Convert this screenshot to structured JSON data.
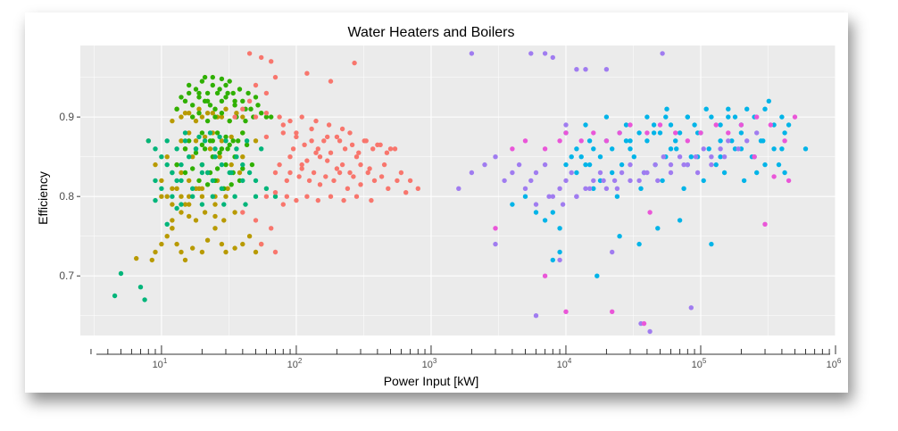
{
  "chart_data": {
    "type": "scatter",
    "title": "Water Heaters and Boilers",
    "xlabel": "Power Input [kW]",
    "ylabel": "Efficiency",
    "xscale": "log10",
    "xlim": [
      2.5,
      1000000
    ],
    "ylim": [
      0.625,
      0.99
    ],
    "grid": true,
    "legend": "none",
    "y_ticks": [
      {
        "value": 0.7,
        "label": "0.7"
      },
      {
        "value": 0.8,
        "label": "0.8"
      },
      {
        "value": 0.9,
        "label": "0.9"
      }
    ],
    "x_ticks": [
      {
        "value": 10,
        "base": "10",
        "exp": "1"
      },
      {
        "value": 100,
        "base": "10",
        "exp": "2"
      },
      {
        "value": 1000,
        "base": "10",
        "exp": "3"
      },
      {
        "value": 10000,
        "base": "10",
        "exp": "4"
      },
      {
        "value": 100000,
        "base": "10",
        "exp": "5"
      },
      {
        "value": 1000000,
        "base": "10",
        "exp": "6"
      }
    ],
    "colors": {
      "panel": "#ebebeb",
      "grid": "#ffffff",
      "series": [
        "#b89a00",
        "#2fb000",
        "#00b57a",
        "#f8766d",
        "#00b4e8",
        "#a07cf0",
        "#ea56d8"
      ]
    },
    "series": [
      {
        "color": "#b89a00",
        "x": [
          6.5,
          8.5,
          9,
          10,
          11,
          12,
          13,
          14,
          15,
          17,
          20,
          22,
          25,
          28,
          30,
          35,
          40,
          45,
          50,
          55,
          11,
          12,
          13,
          14,
          15,
          16,
          18,
          20,
          25,
          30,
          12,
          14,
          16,
          18,
          20,
          24,
          28,
          32,
          40,
          13,
          15,
          17,
          19,
          22,
          26,
          30,
          36,
          11,
          13,
          15,
          17,
          20,
          23,
          27,
          33,
          40,
          10,
          12,
          14,
          16,
          19,
          22,
          26,
          31,
          38,
          12,
          14,
          16,
          18,
          21,
          25,
          29,
          35,
          14,
          16,
          18,
          21,
          24,
          28,
          33,
          40,
          50,
          8,
          9,
          10,
          12,
          16,
          20,
          25
        ],
        "y": [
          0.722,
          0.72,
          0.73,
          0.74,
          0.75,
          0.76,
          0.74,
          0.73,
          0.72,
          0.735,
          0.73,
          0.745,
          0.76,
          0.74,
          0.73,
          0.735,
          0.74,
          0.75,
          0.73,
          0.74,
          0.8,
          0.79,
          0.81,
          0.8,
          0.79,
          0.8,
          0.81,
          0.8,
          0.79,
          0.8,
          0.895,
          0.9,
          0.905,
          0.895,
          0.9,
          0.905,
          0.9,
          0.895,
          0.9,
          0.91,
          0.905,
          0.9,
          0.91,
          0.905,
          0.9,
          0.91,
          0.905,
          0.85,
          0.84,
          0.86,
          0.85,
          0.84,
          0.86,
          0.85,
          0.84,
          0.85,
          0.82,
          0.81,
          0.83,
          0.82,
          0.81,
          0.83,
          0.82,
          0.81,
          0.83,
          0.77,
          0.78,
          0.775,
          0.77,
          0.78,
          0.775,
          0.77,
          0.78,
          0.87,
          0.88,
          0.87,
          0.875,
          0.88,
          0.87,
          0.875,
          0.88,
          0.87,
          0.87,
          0.84,
          0.8,
          0.76,
          0.79,
          0.81,
          0.8
        ]
      },
      {
        "color": "#2fb000",
        "x": [
          13,
          15,
          17,
          19,
          21,
          23,
          25,
          28,
          31,
          35,
          40,
          46,
          52,
          60,
          16,
          18,
          20,
          22,
          24,
          27,
          30,
          34,
          38,
          44,
          50,
          17,
          19,
          22,
          25,
          28,
          32,
          36,
          42,
          48,
          20,
          23,
          26,
          30,
          34,
          40,
          15,
          18,
          21,
          24,
          27,
          31,
          35,
          13,
          15,
          17,
          20,
          23,
          26,
          30,
          34,
          40,
          47,
          19,
          22,
          25,
          29,
          33,
          38,
          16,
          20,
          24,
          28,
          32,
          37,
          43,
          21,
          24,
          28,
          32,
          14,
          16,
          19,
          22,
          26,
          30,
          35,
          42,
          55,
          65
        ],
        "y": [
          0.91,
          0.92,
          0.915,
          0.93,
          0.92,
          0.915,
          0.91,
          0.92,
          0.93,
          0.915,
          0.92,
          0.91,
          0.915,
          0.9,
          0.94,
          0.935,
          0.945,
          0.93,
          0.94,
          0.935,
          0.94,
          0.93,
          0.935,
          0.93,
          0.925,
          0.9,
          0.905,
          0.895,
          0.9,
          0.905,
          0.895,
          0.9,
          0.895,
          0.9,
          0.88,
          0.87,
          0.88,
          0.875,
          0.87,
          0.88,
          0.86,
          0.855,
          0.86,
          0.85,
          0.855,
          0.86,
          0.85,
          0.84,
          0.83,
          0.835,
          0.84,
          0.83,
          0.835,
          0.84,
          0.83,
          0.835,
          0.84,
          0.82,
          0.815,
          0.82,
          0.81,
          0.815,
          0.82,
          0.87,
          0.865,
          0.87,
          0.86,
          0.865,
          0.87,
          0.865,
          0.95,
          0.95,
          0.948,
          0.945,
          0.925,
          0.93,
          0.925,
          0.92,
          0.93,
          0.925,
          0.92,
          0.91,
          0.905,
          0.9
        ]
      },
      {
        "color": "#00b57a",
        "x": [
          4.5,
          5,
          7,
          7.5,
          8,
          9,
          10,
          11,
          12,
          13,
          14,
          16,
          18,
          20,
          22,
          25,
          28,
          32,
          36,
          40,
          45,
          50,
          60,
          70,
          9,
          10,
          12,
          14,
          17,
          20,
          24,
          28,
          33,
          40,
          11,
          13,
          15,
          18,
          21,
          25,
          30,
          36,
          43,
          55,
          12,
          14,
          17,
          20,
          24,
          29,
          35,
          42,
          50,
          15,
          19,
          23,
          27,
          9,
          11,
          13
        ],
        "y": [
          0.675,
          0.703,
          0.686,
          0.67,
          0.87,
          0.86,
          0.85,
          0.84,
          0.83,
          0.82,
          0.84,
          0.85,
          0.86,
          0.84,
          0.83,
          0.85,
          0.84,
          0.83,
          0.85,
          0.84,
          0.83,
          0.82,
          0.81,
          0.8,
          0.82,
          0.81,
          0.83,
          0.82,
          0.81,
          0.83,
          0.82,
          0.81,
          0.83,
          0.82,
          0.87,
          0.86,
          0.87,
          0.86,
          0.87,
          0.86,
          0.87,
          0.86,
          0.87,
          0.86,
          0.8,
          0.79,
          0.8,
          0.79,
          0.8,
          0.79,
          0.8,
          0.79,
          0.8,
          0.88,
          0.875,
          0.88,
          0.875,
          0.795,
          0.765,
          0.785
        ]
      },
      {
        "color": "#f8766d",
        "x": [
          45,
          55,
          65,
          70,
          120,
          180,
          270,
          80,
          100,
          130,
          160,
          200,
          250,
          320,
          400,
          500,
          90,
          110,
          140,
          170,
          220,
          280,
          350,
          450,
          600,
          70,
          85,
          105,
          125,
          150,
          190,
          240,
          300,
          380,
          480,
          650,
          800,
          95,
          115,
          145,
          180,
          230,
          290,
          370,
          470,
          75,
          90,
          110,
          135,
          165,
          210,
          265,
          340,
          430,
          560,
          60,
          70,
          85,
          100,
          120,
          145,
          180,
          225,
          280,
          360,
          50,
          60,
          75,
          90,
          110,
          140,
          175,
          220,
          60,
          80,
          100,
          130,
          170,
          210,
          260,
          330,
          420,
          540,
          700,
          40,
          50,
          65,
          80,
          55,
          70,
          60,
          50,
          45,
          40,
          35,
          120,
          200,
          150,
          300,
          250
        ],
        "y": [
          0.98,
          0.975,
          0.97,
          0.95,
          0.955,
          0.945,
          0.968,
          0.89,
          0.88,
          0.885,
          0.87,
          0.875,
          0.88,
          0.87,
          0.865,
          0.86,
          0.85,
          0.84,
          0.855,
          0.845,
          0.84,
          0.85,
          0.835,
          0.84,
          0.83,
          0.83,
          0.82,
          0.825,
          0.82,
          0.815,
          0.82,
          0.81,
          0.815,
          0.82,
          0.81,
          0.805,
          0.81,
          0.86,
          0.865,
          0.86,
          0.855,
          0.86,
          0.855,
          0.86,
          0.855,
          0.84,
          0.83,
          0.835,
          0.83,
          0.825,
          0.83,
          0.825,
          0.83,
          0.825,
          0.82,
          0.8,
          0.805,
          0.8,
          0.795,
          0.8,
          0.795,
          0.8,
          0.795,
          0.8,
          0.795,
          0.9,
          0.905,
          0.9,
          0.895,
          0.9,
          0.895,
          0.89,
          0.885,
          0.875,
          0.88,
          0.875,
          0.87,
          0.875,
          0.87,
          0.865,
          0.87,
          0.865,
          0.86,
          0.82,
          0.78,
          0.77,
          0.76,
          0.79,
          0.74,
          0.73,
          0.93,
          0.94,
          0.92,
          0.91,
          0.9,
          0.845,
          0.835,
          0.85,
          0.84,
          0.83
        ]
      },
      {
        "color": "#00b4e8",
        "x": [
          8000,
          9000,
          10000,
          11000,
          12000,
          13000,
          14000,
          15000,
          16000,
          18000,
          20000,
          22000,
          25000,
          28000,
          30000,
          35000,
          40000,
          45000,
          50000,
          55000,
          60000,
          70000,
          80000,
          90000,
          100000,
          120000,
          140000,
          160000,
          180000,
          200000,
          250000,
          300000,
          350000,
          400000,
          12000,
          15000,
          18000,
          22000,
          26000,
          32000,
          38000,
          46000,
          55000,
          66000,
          80000,
          95000,
          115000,
          140000,
          170000,
          200000,
          240000,
          290000,
          350000,
          420000,
          10000,
          14000,
          20000,
          28000,
          40000,
          56000,
          80000,
          110000,
          160000,
          220000,
          320000,
          450000,
          600000,
          16000,
          24000,
          36000,
          52000,
          75000,
          105000,
          150000,
          210000,
          300000,
          420000,
          30000,
          45000,
          65000,
          95000,
          140000,
          200000,
          280000,
          400000,
          4000,
          5000,
          6000,
          7000,
          8000,
          9000,
          17000,
          35000,
          120000,
          260000,
          60000,
          85000,
          130000,
          180000,
          250000,
          380000,
          25000,
          48000,
          70000
        ],
        "y": [
          0.78,
          0.76,
          0.84,
          0.85,
          0.86,
          0.85,
          0.84,
          0.87,
          0.86,
          0.85,
          0.87,
          0.86,
          0.88,
          0.87,
          0.86,
          0.88,
          0.87,
          0.89,
          0.88,
          0.9,
          0.89,
          0.88,
          0.9,
          0.89,
          0.88,
          0.9,
          0.89,
          0.91,
          0.9,
          0.89,
          0.9,
          0.91,
          0.89,
          0.9,
          0.83,
          0.84,
          0.82,
          0.83,
          0.84,
          0.85,
          0.83,
          0.84,
          0.85,
          0.86,
          0.84,
          0.85,
          0.86,
          0.85,
          0.87,
          0.86,
          0.85,
          0.87,
          0.86,
          0.88,
          0.88,
          0.89,
          0.9,
          0.89,
          0.9,
          0.91,
          0.9,
          0.91,
          0.9,
          0.91,
          0.92,
          0.89,
          0.86,
          0.81,
          0.8,
          0.81,
          0.82,
          0.81,
          0.82,
          0.83,
          0.82,
          0.84,
          0.83,
          0.87,
          0.88,
          0.87,
          0.88,
          0.87,
          0.88,
          0.87,
          0.86,
          0.79,
          0.8,
          0.78,
          0.77,
          0.72,
          0.73,
          0.7,
          0.74,
          0.74,
          0.83,
          0.86,
          0.85,
          0.84,
          0.86,
          0.85,
          0.84,
          0.75,
          0.76,
          0.77
        ]
      },
      {
        "color": "#a07cf0",
        "x": [
          1600,
          2000,
          2500,
          3000,
          3500,
          4000,
          4500,
          5000,
          5500,
          6000,
          7000,
          8000,
          9000,
          10000,
          11000,
          12000,
          14000,
          16000,
          18000,
          20000,
          23000,
          26000,
          30000,
          35000,
          40000,
          46000,
          53000,
          60000,
          70000,
          80000,
          92000,
          105000,
          120000,
          140000,
          160000,
          190000,
          220000,
          260000,
          6000,
          7500,
          9500,
          12000,
          15000,
          19000,
          24000,
          30000,
          38000,
          48000,
          60000,
          75000,
          95000,
          120000,
          150000,
          2000,
          5500,
          7000,
          8000,
          12000,
          14000,
          20000,
          36000,
          52000,
          9000,
          22000,
          42000,
          85000,
          6000,
          3000,
          10000
        ],
        "y": [
          0.81,
          0.83,
          0.84,
          0.85,
          0.82,
          0.83,
          0.84,
          0.81,
          0.82,
          0.83,
          0.84,
          0.8,
          0.81,
          0.82,
          0.83,
          0.8,
          0.81,
          0.82,
          0.83,
          0.81,
          0.82,
          0.83,
          0.84,
          0.82,
          0.83,
          0.84,
          0.85,
          0.84,
          0.85,
          0.84,
          0.85,
          0.86,
          0.85,
          0.86,
          0.87,
          0.86,
          0.87,
          0.88,
          0.79,
          0.8,
          0.79,
          0.8,
          0.81,
          0.82,
          0.81,
          0.82,
          0.83,
          0.82,
          0.83,
          0.84,
          0.83,
          0.84,
          0.85,
          0.98,
          0.98,
          0.98,
          0.975,
          0.96,
          0.96,
          0.96,
          0.64,
          0.98,
          0.72,
          0.73,
          0.63,
          0.66,
          0.65,
          0.74,
          0.89
        ]
      },
      {
        "color": "#ea56d8",
        "x": [
          3000,
          4000,
          5000,
          7000,
          9000,
          10000,
          13000,
          16000,
          20000,
          25000,
          30000,
          40000,
          50000,
          65000,
          80000,
          100000,
          130000,
          160000,
          200000,
          260000,
          330000,
          420000,
          500000,
          42000,
          7000,
          10000,
          22000,
          38000,
          300000,
          450000,
          350000,
          250000
        ],
        "y": [
          0.76,
          0.86,
          0.87,
          0.86,
          0.87,
          0.88,
          0.87,
          0.88,
          0.87,
          0.88,
          0.89,
          0.88,
          0.89,
          0.88,
          0.87,
          0.88,
          0.89,
          0.88,
          0.89,
          0.9,
          0.89,
          0.87,
          0.9,
          0.78,
          0.7,
          0.655,
          0.655,
          0.64,
          0.765,
          0.82,
          0.825,
          0.85
        ]
      }
    ]
  }
}
